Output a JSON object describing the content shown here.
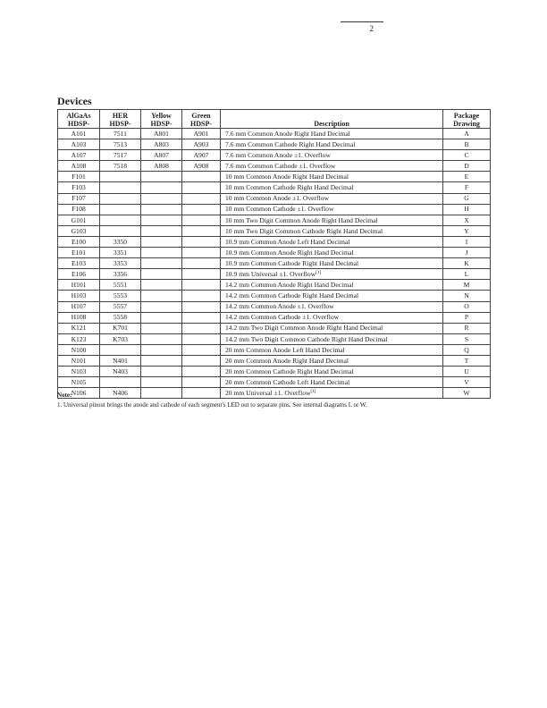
{
  "page_number": "2",
  "section_title": "Devices",
  "table": {
    "headers": [
      [
        "AlGaAs",
        "HDSP-"
      ],
      [
        "HER",
        "HDSP-"
      ],
      [
        "Yellow",
        "HDSP-"
      ],
      [
        "Green",
        "HDSP-"
      ],
      [
        "Description"
      ],
      [
        "Package",
        "Drawing"
      ]
    ],
    "rows": [
      {
        "algaas": "A101",
        "her": "7511",
        "yellow": "A801",
        "green": "A901",
        "desc": "7.6 mm Common Anode Right Hand Decimal",
        "sup": "",
        "pkg": "A"
      },
      {
        "algaas": "A103",
        "her": "7513",
        "yellow": "A803",
        "green": "A903",
        "desc": "7.6 mm Common Cathode Right Hand Decimal",
        "sup": "",
        "pkg": "B"
      },
      {
        "algaas": "A107",
        "her": "7517",
        "yellow": "A807",
        "green": "A907",
        "desc": "7.6 mm Common Anode ±1. Overflow",
        "sup": "",
        "pkg": "C"
      },
      {
        "algaas": "A108",
        "her": "7518",
        "yellow": "A808",
        "green": "A908",
        "desc": "7.6 mm Common Cathode ±1. Overflow",
        "sup": "",
        "pkg": "D"
      },
      {
        "algaas": "F101",
        "her": "",
        "yellow": "",
        "green": "",
        "desc": "10 mm Common Anode Right Hand Decimal",
        "sup": "",
        "pkg": "E"
      },
      {
        "algaas": "F103",
        "her": "",
        "yellow": "",
        "green": "",
        "desc": "10 mm Common Cathode Right Hand Decimal",
        "sup": "",
        "pkg": "F"
      },
      {
        "algaas": "F107",
        "her": "",
        "yellow": "",
        "green": "",
        "desc": "10 mm Common Anode ±1. Overflow",
        "sup": "",
        "pkg": "G"
      },
      {
        "algaas": "F108",
        "her": "",
        "yellow": "",
        "green": "",
        "desc": "10 mm Common Cathode ±1. Overflow",
        "sup": "",
        "pkg": "H"
      },
      {
        "algaas": "G101",
        "her": "",
        "yellow": "",
        "green": "",
        "desc": "10 mm Two Digit Common Anode Right Hand Decimal",
        "sup": "",
        "pkg": "X"
      },
      {
        "algaas": "G103",
        "her": "",
        "yellow": "",
        "green": "",
        "desc": "10 mm Two Digit Common Cathode Right Hand Decimal",
        "sup": "",
        "pkg": "Y"
      },
      {
        "algaas": "E100",
        "her": "3350",
        "yellow": "",
        "green": "",
        "desc": "10.9 mm Common Anode Left Hand Decimal",
        "sup": "",
        "pkg": "I"
      },
      {
        "algaas": "E101",
        "her": "3351",
        "yellow": "",
        "green": "",
        "desc": "10.9 mm Common Anode Right Hand Decimal",
        "sup": "",
        "pkg": "J"
      },
      {
        "algaas": "E103",
        "her": "3353",
        "yellow": "",
        "green": "",
        "desc": "10.9 mm Common Cathode Right Hand Decimal",
        "sup": "",
        "pkg": "K"
      },
      {
        "algaas": "E106",
        "her": "3356",
        "yellow": "",
        "green": "",
        "desc": "10.9 mm Universal ±1. Overflow",
        "sup": "[1]",
        "pkg": "L"
      },
      {
        "algaas": "H101",
        "her": "5551",
        "yellow": "",
        "green": "",
        "desc": "14.2 mm Common Anode Right Hand Decimal",
        "sup": "",
        "pkg": "M"
      },
      {
        "algaas": "H103",
        "her": "5553",
        "yellow": "",
        "green": "",
        "desc": "14.2 mm Common Cathode Right Hand Decimal",
        "sup": "",
        "pkg": "N"
      },
      {
        "algaas": "H107",
        "her": "5557",
        "yellow": "",
        "green": "",
        "desc": "14.2 mm Common Anode ±1. Overflow",
        "sup": "",
        "pkg": "O"
      },
      {
        "algaas": "H108",
        "her": "5558",
        "yellow": "",
        "green": "",
        "desc": "14.2 mm Common Cathode ±1. Overflow",
        "sup": "",
        "pkg": "P"
      },
      {
        "algaas": "K121",
        "her": "K701",
        "yellow": "",
        "green": "",
        "desc": "14.2 mm Two Digit Common Anode Right Hand Decimal",
        "sup": "",
        "pkg": "R"
      },
      {
        "algaas": "K123",
        "her": "K703",
        "yellow": "",
        "green": "",
        "desc": "14.2 mm Two Digit Common Cathode Right Hand Decimal",
        "sup": "",
        "pkg": "S"
      },
      {
        "algaas": "N100",
        "her": "",
        "yellow": "",
        "green": "",
        "desc": "20 mm Common Anode Left Hand Decimal",
        "sup": "",
        "pkg": "Q"
      },
      {
        "algaas": "N101",
        "her": "N401",
        "yellow": "",
        "green": "",
        "desc": "20 mm Common Anode Right Hand Decimal",
        "sup": "",
        "pkg": "T"
      },
      {
        "algaas": "N103",
        "her": "N403",
        "yellow": "",
        "green": "",
        "desc": "20 mm Common Cathode Right Hand Decimal",
        "sup": "",
        "pkg": "U"
      },
      {
        "algaas": "N105",
        "her": "",
        "yellow": "",
        "green": "",
        "desc": "20 mm Common Cathode Left Hand Decimal",
        "sup": "",
        "pkg": "V"
      },
      {
        "algaas": "N106",
        "her": "N406",
        "yellow": "",
        "green": "",
        "desc": "20 mm Universal ±1. Overflow",
        "sup": "[1]",
        "pkg": "W"
      }
    ]
  },
  "note": {
    "label": "Note:",
    "text": "1. Universal pinout brings the anode and cathode of each segment's LED out to separate pins. See internal diagrams L or W."
  }
}
